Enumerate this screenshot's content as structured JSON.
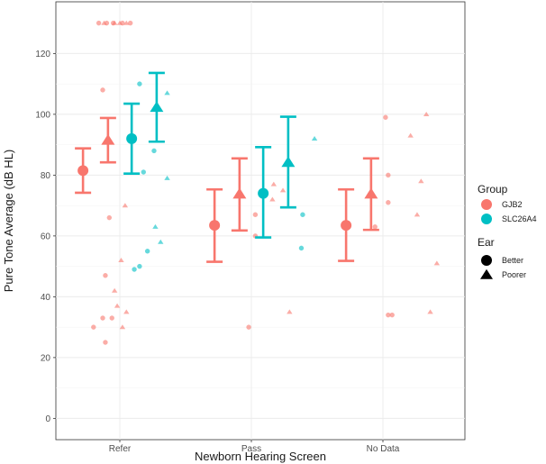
{
  "chart_data": {
    "type": "scatter",
    "xlabel": "Newborn Hearing Screen",
    "ylabel": "Pure Tone Average (dB HL)",
    "categories": [
      "Refer",
      "Pass",
      "No Data"
    ],
    "y_ticks": [
      0,
      20,
      40,
      60,
      80,
      100,
      120
    ],
    "ylim": [
      -7,
      137
    ],
    "grid": true,
    "legend_position": "right",
    "legend": {
      "group_title": "Group",
      "groups": [
        {
          "name": "GJB2",
          "color": "#F8766D"
        },
        {
          "name": "SLC26A4",
          "color": "#00BFC4"
        }
      ],
      "ear_title": "Ear",
      "ears": [
        {
          "name": "Better",
          "shape": "circle"
        },
        {
          "name": "Poorer",
          "shape": "triangle"
        }
      ]
    },
    "summary": [
      {
        "category": "Refer",
        "group": "GJB2",
        "ear": "Better",
        "mean": 81.5,
        "low": 74.2,
        "high": 88.8
      },
      {
        "category": "Refer",
        "group": "GJB2",
        "ear": "Poorer",
        "mean": 91.5,
        "low": 84.2,
        "high": 98.8
      },
      {
        "category": "Refer",
        "group": "SLC26A4",
        "ear": "Better",
        "mean": 92.0,
        "low": 80.5,
        "high": 103.5
      },
      {
        "category": "Refer",
        "group": "SLC26A4",
        "ear": "Poorer",
        "mean": 102.3,
        "low": 91.0,
        "high": 113.6
      },
      {
        "category": "Pass",
        "group": "GJB2",
        "ear": "Better",
        "mean": 63.5,
        "low": 51.5,
        "high": 75.3
      },
      {
        "category": "Pass",
        "group": "GJB2",
        "ear": "Poorer",
        "mean": 73.8,
        "low": 61.8,
        "high": 85.5
      },
      {
        "category": "Pass",
        "group": "SLC26A4",
        "ear": "Better",
        "mean": 74.0,
        "low": 59.5,
        "high": 89.2
      },
      {
        "category": "Pass",
        "group": "SLC26A4",
        "ear": "Poorer",
        "mean": 84.2,
        "low": 69.4,
        "high": 99.2
      },
      {
        "category": "No Data",
        "group": "GJB2",
        "ear": "Better",
        "mean": 63.5,
        "low": 51.8,
        "high": 75.3
      },
      {
        "category": "No Data",
        "group": "GJB2",
        "ear": "Poorer",
        "mean": 73.8,
        "low": 62.0,
        "high": 85.5
      }
    ],
    "points": [
      {
        "category": "Refer",
        "group": "GJB2",
        "ear": "Better",
        "jitter": -0.16,
        "value": 130
      },
      {
        "category": "Refer",
        "group": "GJB2",
        "ear": "Better",
        "jitter": -0.1,
        "value": 130
      },
      {
        "category": "Refer",
        "group": "GJB2",
        "ear": "Better",
        "jitter": -0.05,
        "value": 130
      },
      {
        "category": "Refer",
        "group": "GJB2",
        "ear": "Better",
        "jitter": 0.02,
        "value": 130
      },
      {
        "category": "Refer",
        "group": "GJB2",
        "ear": "Better",
        "jitter": 0.08,
        "value": 130
      },
      {
        "category": "Refer",
        "group": "GJB2",
        "ear": "Better",
        "jitter": -0.13,
        "value": 108
      },
      {
        "category": "Refer",
        "group": "GJB2",
        "ear": "Better",
        "jitter": -0.08,
        "value": 66
      },
      {
        "category": "Refer",
        "group": "GJB2",
        "ear": "Better",
        "jitter": -0.11,
        "value": 47
      },
      {
        "category": "Refer",
        "group": "GJB2",
        "ear": "Better",
        "jitter": -0.13,
        "value": 33
      },
      {
        "category": "Refer",
        "group": "GJB2",
        "ear": "Better",
        "jitter": -0.06,
        "value": 33
      },
      {
        "category": "Refer",
        "group": "GJB2",
        "ear": "Better",
        "jitter": -0.2,
        "value": 30
      },
      {
        "category": "Refer",
        "group": "GJB2",
        "ear": "Better",
        "jitter": -0.11,
        "value": 25
      },
      {
        "category": "Refer",
        "group": "GJB2",
        "ear": "Poorer",
        "jitter": -0.12,
        "value": 130
      },
      {
        "category": "Refer",
        "group": "GJB2",
        "ear": "Poorer",
        "jitter": -0.04,
        "value": 130
      },
      {
        "category": "Refer",
        "group": "GJB2",
        "ear": "Poorer",
        "jitter": 0.0,
        "value": 130
      },
      {
        "category": "Refer",
        "group": "GJB2",
        "ear": "Poorer",
        "jitter": 0.05,
        "value": 130
      },
      {
        "category": "Refer",
        "group": "GJB2",
        "ear": "Poorer",
        "jitter": 0.04,
        "value": 70
      },
      {
        "category": "Refer",
        "group": "GJB2",
        "ear": "Poorer",
        "jitter": 0.01,
        "value": 52
      },
      {
        "category": "Refer",
        "group": "GJB2",
        "ear": "Poorer",
        "jitter": -0.04,
        "value": 42
      },
      {
        "category": "Refer",
        "group": "GJB2",
        "ear": "Poorer",
        "jitter": -0.02,
        "value": 37
      },
      {
        "category": "Refer",
        "group": "GJB2",
        "ear": "Poorer",
        "jitter": 0.05,
        "value": 35
      },
      {
        "category": "Refer",
        "group": "GJB2",
        "ear": "Poorer",
        "jitter": 0.02,
        "value": 30
      },
      {
        "category": "Refer",
        "group": "SLC26A4",
        "ear": "Better",
        "jitter": 0.15,
        "value": 110
      },
      {
        "category": "Refer",
        "group": "SLC26A4",
        "ear": "Better",
        "jitter": 0.26,
        "value": 88
      },
      {
        "category": "Refer",
        "group": "SLC26A4",
        "ear": "Better",
        "jitter": 0.18,
        "value": 81
      },
      {
        "category": "Refer",
        "group": "SLC26A4",
        "ear": "Better",
        "jitter": 0.21,
        "value": 55
      },
      {
        "category": "Refer",
        "group": "SLC26A4",
        "ear": "Better",
        "jitter": 0.15,
        "value": 50
      },
      {
        "category": "Refer",
        "group": "SLC26A4",
        "ear": "Better",
        "jitter": 0.11,
        "value": 49
      },
      {
        "category": "Refer",
        "group": "SLC26A4",
        "ear": "Poorer",
        "jitter": 0.36,
        "value": 107
      },
      {
        "category": "Refer",
        "group": "SLC26A4",
        "ear": "Poorer",
        "jitter": 0.36,
        "value": 79
      },
      {
        "category": "Refer",
        "group": "SLC26A4",
        "ear": "Poorer",
        "jitter": 0.27,
        "value": 63
      },
      {
        "category": "Refer",
        "group": "SLC26A4",
        "ear": "Poorer",
        "jitter": 0.31,
        "value": 58
      },
      {
        "category": "Pass",
        "group": "GJB2",
        "ear": "Better",
        "jitter": 0.03,
        "value": 67
      },
      {
        "category": "Pass",
        "group": "GJB2",
        "ear": "Better",
        "jitter": 0.03,
        "value": 60
      },
      {
        "category": "Pass",
        "group": "GJB2",
        "ear": "Better",
        "jitter": -0.02,
        "value": 30
      },
      {
        "category": "Pass",
        "group": "GJB2",
        "ear": "Poorer",
        "jitter": 0.17,
        "value": 77
      },
      {
        "category": "Pass",
        "group": "GJB2",
        "ear": "Poorer",
        "jitter": 0.24,
        "value": 75
      },
      {
        "category": "Pass",
        "group": "GJB2",
        "ear": "Poorer",
        "jitter": 0.16,
        "value": 72
      },
      {
        "category": "Pass",
        "group": "GJB2",
        "ear": "Poorer",
        "jitter": 0.29,
        "value": 35
      },
      {
        "category": "Pass",
        "group": "SLC26A4",
        "ear": "Better",
        "jitter": 0.39,
        "value": 67
      },
      {
        "category": "Pass",
        "group": "SLC26A4",
        "ear": "Better",
        "jitter": 0.38,
        "value": 56
      },
      {
        "category": "Pass",
        "group": "SLC26A4",
        "ear": "Poorer",
        "jitter": 0.48,
        "value": 92
      },
      {
        "category": "No Data",
        "group": "GJB2",
        "ear": "Better",
        "jitter": 0.02,
        "value": 99
      },
      {
        "category": "No Data",
        "group": "GJB2",
        "ear": "Better",
        "jitter": 0.04,
        "value": 80
      },
      {
        "category": "No Data",
        "group": "GJB2",
        "ear": "Better",
        "jitter": 0.04,
        "value": 71
      },
      {
        "category": "No Data",
        "group": "GJB2",
        "ear": "Better",
        "jitter": -0.06,
        "value": 63
      },
      {
        "category": "No Data",
        "group": "GJB2",
        "ear": "Better",
        "jitter": 0.04,
        "value": 34
      },
      {
        "category": "No Data",
        "group": "GJB2",
        "ear": "Better",
        "jitter": 0.07,
        "value": 34
      },
      {
        "category": "No Data",
        "group": "GJB2",
        "ear": "Poorer",
        "jitter": 0.33,
        "value": 100
      },
      {
        "category": "No Data",
        "group": "GJB2",
        "ear": "Poorer",
        "jitter": 0.21,
        "value": 93
      },
      {
        "category": "No Data",
        "group": "GJB2",
        "ear": "Poorer",
        "jitter": 0.29,
        "value": 78
      },
      {
        "category": "No Data",
        "group": "GJB2",
        "ear": "Poorer",
        "jitter": 0.26,
        "value": 67
      },
      {
        "category": "No Data",
        "group": "GJB2",
        "ear": "Poorer",
        "jitter": 0.41,
        "value": 51
      },
      {
        "category": "No Data",
        "group": "GJB2",
        "ear": "Poorer",
        "jitter": 0.36,
        "value": 35
      }
    ]
  }
}
